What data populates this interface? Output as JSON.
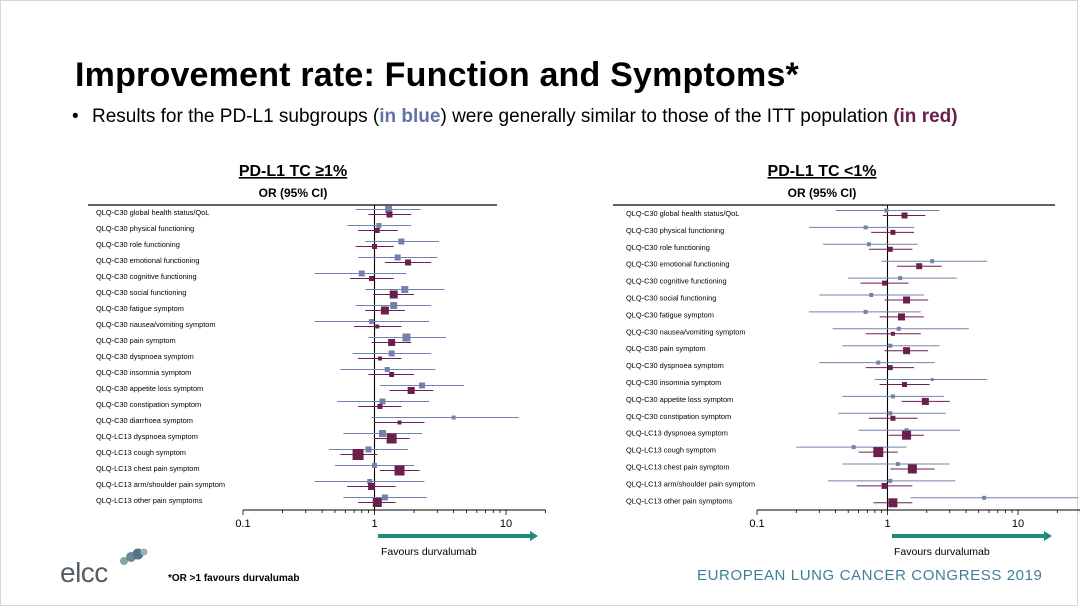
{
  "title": "Improvement rate: Function and Symptoms*",
  "bullet": {
    "prefix": "Results for the PD-L1 subgroups (",
    "blue_text": "in blue",
    "middle": ") were generally similar to those of the ITT population ",
    "red_text": "(in red)"
  },
  "footnote": "*OR >1 favours durvalumab",
  "congress": "EUROPEAN LUNG CANCER CONGRESS 2019",
  "logo_text": "elcc",
  "colors": {
    "pdl1": "#7581ac",
    "itt": "#6b1f4c",
    "arrow": "#1f8a78",
    "axis": "#000000"
  },
  "chart_data": [
    {
      "type": "scatter",
      "title": "PD-L1 TC ≥1%",
      "subtitle": "OR (95% CI)",
      "xscale": "log",
      "xlim": [
        0.1,
        20
      ],
      "xticks": [
        0.1,
        1,
        10
      ],
      "xtick_labels": [
        "0.1",
        "1",
        "10"
      ],
      "arrow_label": "Favours durvalumab",
      "categories": [
        "QLQ-C30 global health status/QoL",
        "QLQ-C30 physical functioning",
        "QLQ-C30 role functioning",
        "QLQ-C30 emotional functioning",
        "QLQ-C30 cognitive functioning",
        "QLQ-C30 social functioning",
        "QLQ-C30 fatigue symptom",
        "QLQ-C30 nausea/vomiting symptom",
        "QLQ-C30 pain symptom",
        "QLQ-C30 dyspnoea symptom",
        "QLQ-C30 insomnia symptom",
        "QLQ-C30 appetite loss symptom",
        "QLQ-C30 constipation symptom",
        "QLQ-C30 diarrhoea symptom",
        "QLQ-LC13 dyspnoea symptom",
        "QLQ-LC13 cough symptom",
        "QLQ-LC13 chest pain symptom",
        "QLQ-LC13 arm/shoulder pain symptom",
        "QLQ-LC13 other pain symptoms"
      ],
      "series": [
        {
          "key": "pdl1",
          "or": [
            1.28,
            1.08,
            1.6,
            1.5,
            0.8,
            1.7,
            1.4,
            0.95,
            1.75,
            1.35,
            1.25,
            2.3,
            1.15,
            4.0,
            1.15,
            0.9,
            1.0,
            0.92,
            1.2
          ],
          "lower": [
            0.72,
            0.62,
            0.85,
            0.75,
            0.35,
            0.85,
            0.72,
            0.35,
            0.9,
            0.68,
            0.55,
            1.1,
            0.52,
            0.95,
            0.58,
            0.45,
            0.5,
            0.35,
            0.58
          ],
          "upper": [
            2.25,
            1.9,
            3.1,
            3.0,
            1.75,
            3.4,
            2.7,
            2.6,
            3.5,
            2.7,
            2.9,
            4.8,
            2.6,
            12.5,
            2.3,
            1.8,
            2.0,
            2.4,
            2.5
          ],
          "weight": [
            7,
            5,
            6,
            6,
            6,
            7,
            7,
            5,
            8,
            6,
            5,
            6,
            6,
            4,
            7,
            6,
            5,
            5,
            6
          ]
        },
        {
          "key": "itt",
          "or": [
            1.3,
            1.05,
            1.0,
            1.8,
            0.95,
            1.4,
            1.2,
            1.05,
            1.35,
            1.1,
            1.35,
            1.9,
            1.1,
            1.55,
            1.35,
            0.75,
            1.55,
            0.95,
            1.05
          ],
          "lower": [
            0.9,
            0.75,
            0.72,
            1.2,
            0.65,
            0.98,
            0.85,
            0.7,
            0.95,
            0.75,
            0.9,
            1.3,
            0.75,
            1.0,
            1.0,
            0.55,
            1.1,
            0.62,
            0.75
          ],
          "upper": [
            1.9,
            1.5,
            1.4,
            2.7,
            1.4,
            2.0,
            1.7,
            1.6,
            1.9,
            1.6,
            2.0,
            2.8,
            1.6,
            2.4,
            1.85,
            1.05,
            2.2,
            1.45,
            1.45
          ],
          "weight": [
            6,
            5,
            5,
            6,
            5,
            8,
            8,
            4,
            7,
            4,
            5,
            7,
            5,
            4,
            10,
            11,
            10,
            7,
            9
          ]
        }
      ]
    },
    {
      "type": "scatter",
      "title": "PD-L1 TC <1%",
      "subtitle": "OR (95% CI)",
      "xscale": "log",
      "xlim": [
        0.1,
        30
      ],
      "xticks": [
        0.1,
        1,
        10
      ],
      "xtick_labels": [
        "0.1",
        "1",
        "10"
      ],
      "arrow_label": "Favours durvalumab",
      "categories": [
        "QLQ-C30 global health status/QoL",
        "QLQ-C30 physical functioning",
        "QLQ-C30 role functioning",
        "QLQ-C30 emotional functioning",
        "QLQ-C30 cognitive functioning",
        "QLQ-C30 social functioning",
        "QLQ-C30 fatigue symptom",
        "QLQ-C30 nausea/vomiting symptom",
        "QLQ-C30 pain symptom",
        "QLQ-C30 dyspnoea symptom",
        "QLQ-C30 insomnia symptom",
        "QLQ-C30 appetite loss symptom",
        "QLQ-C30 constipation symptom",
        "QLQ-LC13 dyspnoea symptom",
        "QLQ-LC13 cough symptom",
        "QLQ-LC13 chest pain symptom",
        "QLQ-LC13 arm/shoulder pain symptom",
        "QLQ-LC13 other pain symptoms"
      ],
      "series": [
        {
          "key": "pdl1",
          "or": [
            0.98,
            0.68,
            0.72,
            2.2,
            1.25,
            0.75,
            0.68,
            1.22,
            1.05,
            0.85,
            2.2,
            1.1,
            1.05,
            1.4,
            0.55,
            1.2,
            1.05,
            5.5
          ],
          "lower": [
            0.4,
            0.25,
            0.32,
            0.9,
            0.5,
            0.3,
            0.25,
            0.38,
            0.45,
            0.3,
            0.8,
            0.45,
            0.42,
            0.6,
            0.2,
            0.45,
            0.35,
            1.5
          ],
          "upper": [
            2.5,
            1.6,
            1.7,
            5.8,
            3.4,
            1.9,
            1.8,
            4.2,
            2.5,
            2.3,
            5.8,
            2.7,
            2.8,
            3.6,
            1.4,
            3.0,
            3.3,
            29.0
          ],
          "weight": [
            4,
            4,
            4,
            4,
            4,
            4,
            4,
            4,
            4,
            4,
            3,
            4,
            4,
            4,
            4,
            4,
            4,
            4
          ]
        },
        {
          "key": "itt",
          "or": [
            1.35,
            1.1,
            1.05,
            1.75,
            0.95,
            1.4,
            1.28,
            1.1,
            1.4,
            1.05,
            1.35,
            1.95,
            1.1,
            1.4,
            0.85,
            1.55,
            0.95,
            1.1
          ],
          "lower": [
            0.92,
            0.75,
            0.72,
            1.18,
            0.62,
            0.95,
            0.87,
            0.68,
            0.95,
            0.68,
            0.87,
            1.28,
            0.72,
            1.02,
            0.6,
            1.05,
            0.58,
            0.78
          ],
          "upper": [
            1.95,
            1.6,
            1.55,
            2.6,
            1.45,
            2.05,
            1.9,
            1.8,
            2.05,
            1.6,
            2.1,
            3.0,
            1.7,
            1.9,
            1.2,
            2.3,
            1.55,
            1.55
          ],
          "weight": [
            6,
            5,
            5,
            6,
            5,
            7,
            7,
            4,
            7,
            5,
            5,
            7,
            5,
            9,
            10,
            9,
            6,
            9
          ]
        }
      ]
    }
  ]
}
